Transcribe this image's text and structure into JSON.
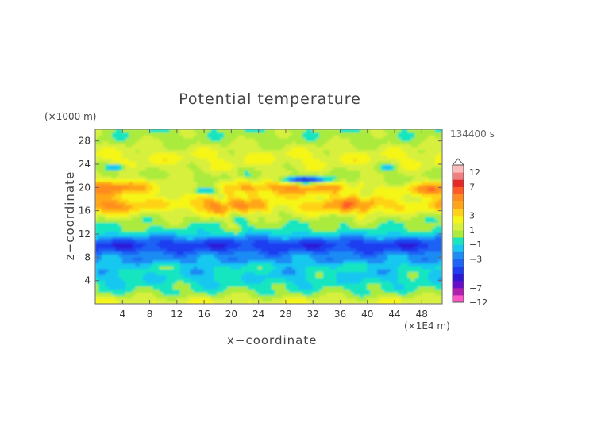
{
  "chart_data": {
    "type": "heatmap",
    "title": "Potential temperature",
    "xlabel": "x−coordinate",
    "ylabel": "z−coordinate",
    "x_unit": "(×1E4 m)",
    "y_unit": "(×1000 m)",
    "time_label": "134400 s",
    "xlim": [
      0,
      51
    ],
    "ylim": [
      0,
      30
    ],
    "x_ticks": [
      4,
      8,
      12,
      16,
      20,
      24,
      28,
      32,
      36,
      40,
      44,
      48
    ],
    "y_ticks": [
      4,
      8,
      12,
      16,
      20,
      24,
      28
    ],
    "colorbar": {
      "levels": [
        -12,
        -9,
        -7,
        -6,
        -5,
        -4,
        -3,
        -2,
        -1,
        0,
        1,
        2,
        3,
        4,
        5,
        6,
        7,
        9,
        12
      ],
      "labels": [
        12,
        7,
        3,
        1,
        -1,
        -3,
        -7,
        -12
      ],
      "colors": [
        "#ff55c8",
        "#b020b0",
        "#6a0dc8",
        "#2a1ad8",
        "#1e3cf0",
        "#1e64f5",
        "#1e8cf5",
        "#19c8f0",
        "#19e6c0",
        "#aaeb3c",
        "#d7f03c",
        "#f5f519",
        "#ffd219",
        "#ffa519",
        "#ff8c1e",
        "#ff5a28",
        "#e62828",
        "#f08080",
        "#ffbcbc"
      ]
    },
    "zones": [
      {
        "z": [
          0,
          1.5
        ],
        "value": "-1 to 1"
      },
      {
        "z": [
          1.5,
          6
        ],
        "value": "-2 to 0"
      },
      {
        "z": [
          6,
          8
        ],
        "value": "-2 to -1"
      },
      {
        "z": [
          8,
          12
        ],
        "value": "-5 to -4"
      },
      {
        "z": [
          12,
          14
        ],
        "value": "-2 to 1"
      },
      {
        "z": [
          14,
          22
        ],
        "value": "2 to 7"
      },
      {
        "z": [
          22,
          30
        ],
        "value": "0 to 2"
      }
    ]
  }
}
